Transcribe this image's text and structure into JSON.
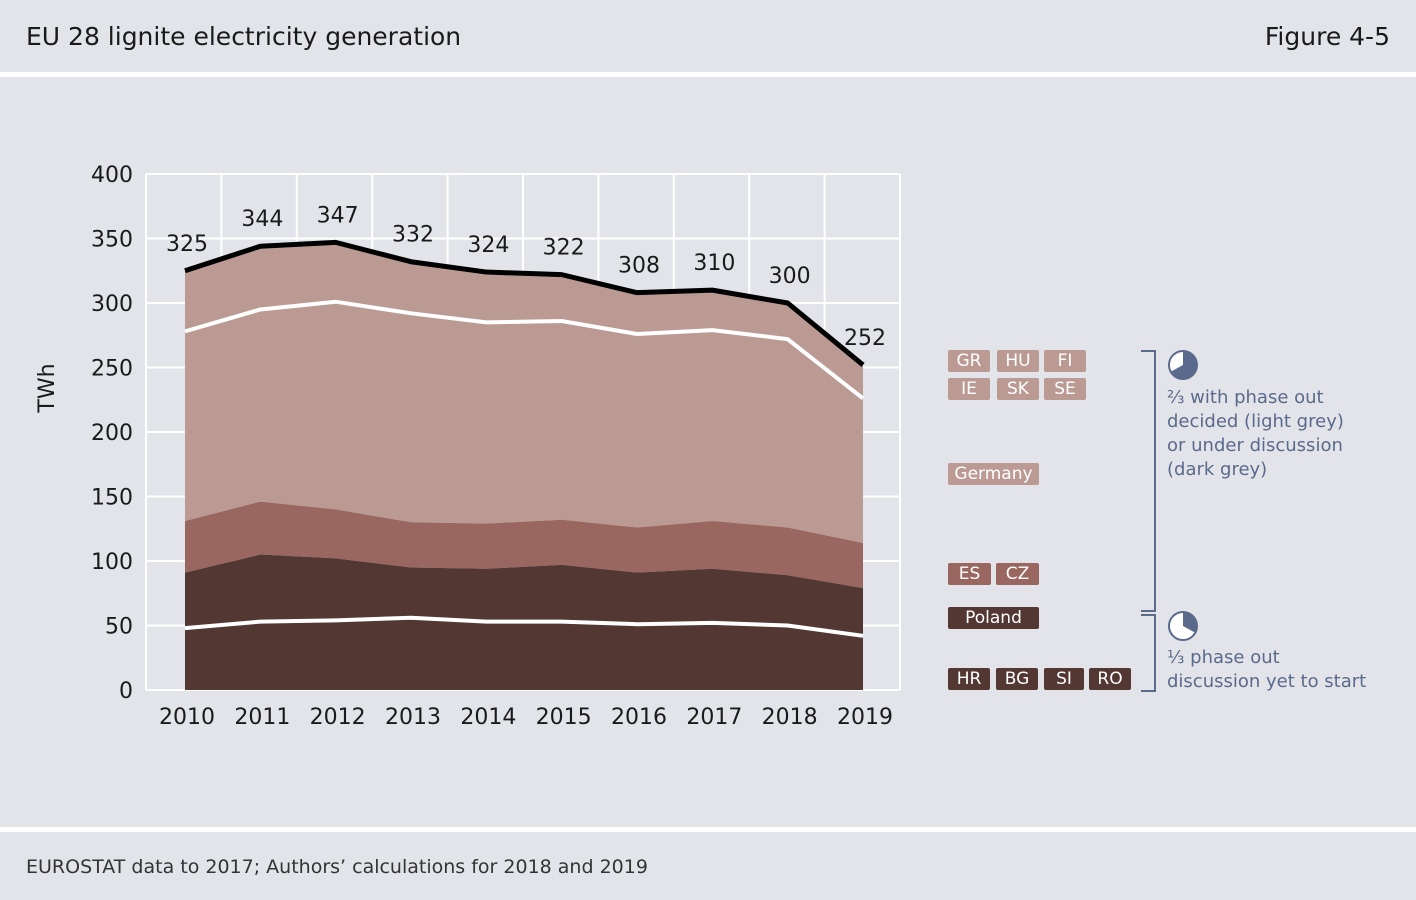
{
  "header": {
    "title": "EU 28 lignite electricity generation",
    "figure": "Figure 4-5"
  },
  "footer": {
    "source": "EUROSTAT data to 2017; Authors’ calculations for 2018 and 2019"
  },
  "colors": {
    "layer_top": "#bc9a94",
    "layer_mid": "#9a6760",
    "layer_low": "#533733",
    "grid": "#ffffff",
    "total_line": "#000000",
    "accent_note": "#5a6a8c"
  },
  "chart_data": {
    "type": "area",
    "title": "",
    "xlabel": "",
    "ylabel": "TWh",
    "ylim": [
      0,
      400
    ],
    "yticks": [
      0,
      50,
      100,
      150,
      200,
      250,
      300,
      350,
      400
    ],
    "x": [
      "2010",
      "2011",
      "2012",
      "2013",
      "2014",
      "2015",
      "2016",
      "2017",
      "2018",
      "2019"
    ],
    "boundaries": {
      "poland_top": [
        48,
        53,
        54,
        56,
        53,
        53,
        51,
        52,
        50,
        42
      ],
      "hr_bg_si_ro_top": [
        91,
        105,
        102,
        95,
        94,
        97,
        91,
        94,
        89,
        79
      ],
      "es_cz_top": [
        131,
        146,
        140,
        130,
        129,
        132,
        126,
        131,
        126,
        114
      ],
      "germany_top": [
        278,
        295,
        301,
        292,
        285,
        286,
        276,
        279,
        272,
        226
      ],
      "total": [
        325,
        344,
        347,
        332,
        324,
        322,
        308,
        310,
        300,
        252
      ]
    },
    "total_labels": [
      "325",
      "344",
      "347",
      "332",
      "324",
      "322",
      "308",
      "310",
      "300",
      "252"
    ]
  },
  "legend": {
    "group_top": [
      "GR",
      "HU",
      "FI",
      "IE",
      "SK",
      "SE"
    ],
    "germany": "Germany",
    "group_mid": [
      "ES",
      "CZ"
    ],
    "poland": "Poland",
    "group_low": [
      "HR",
      "BG",
      "SI",
      "RO"
    ],
    "note_upper": [
      "⅔ with phase out",
      "decided (light grey)",
      "or under discussion",
      "(dark grey)"
    ],
    "note_lower": [
      "⅓ phase out",
      "discussion yet to start"
    ],
    "pie_upper": 0.67,
    "pie_lower": 0.33
  }
}
